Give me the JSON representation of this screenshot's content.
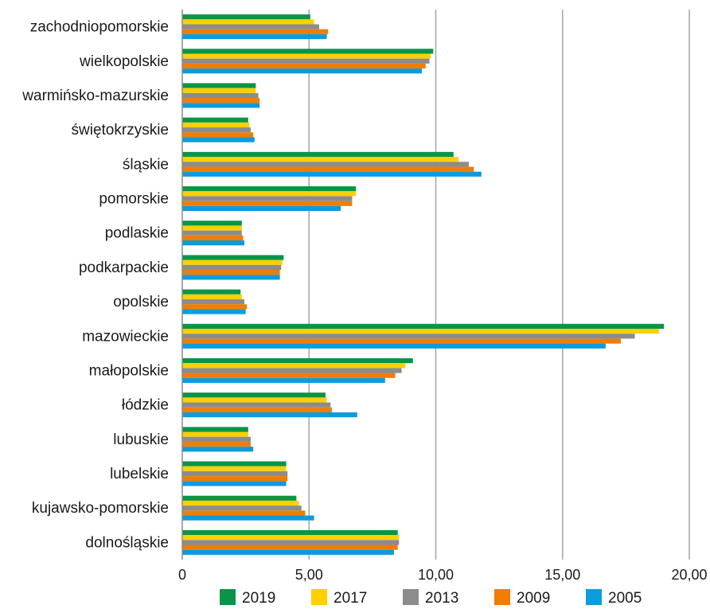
{
  "chart_data": {
    "type": "bar",
    "orientation": "horizontal",
    "title": "",
    "xlabel": "",
    "ylabel": "",
    "xlim": [
      0,
      20
    ],
    "x_ticks": [
      "0",
      "5,00",
      "10,00",
      "15,00",
      "20,00"
    ],
    "grid": "vertical",
    "legend_position": "bottom",
    "categories": [
      "zachodniopomorskie",
      "wielkopolskie",
      "warmińsko-mazurskie",
      "świętokrzyskie",
      "śląskie",
      "pomorskie",
      "podlaskie",
      "podkarpackie",
      "opolskie",
      "mazowieckie",
      "małopolskie",
      "łódzkie",
      "lubuskie",
      "lubelskie",
      "kujawsko-pomorskie",
      "dolnośląskie"
    ],
    "series": [
      {
        "name": "2019",
        "color": "#0a9447",
        "values": [
          5.05,
          9.9,
          2.9,
          2.6,
          10.7,
          6.85,
          2.35,
          4.0,
          2.3,
          19.0,
          9.1,
          5.65,
          2.6,
          4.1,
          4.5,
          8.5
        ]
      },
      {
        "name": "2017",
        "color": "#ffd000",
        "values": [
          5.2,
          9.8,
          2.9,
          2.65,
          10.9,
          6.85,
          2.35,
          3.95,
          2.35,
          18.8,
          8.8,
          5.7,
          2.6,
          4.1,
          4.6,
          8.55
        ]
      },
      {
        "name": "2013",
        "color": "#8c8c8c",
        "values": [
          5.4,
          9.75,
          3.0,
          2.7,
          11.3,
          6.7,
          2.35,
          3.9,
          2.45,
          17.85,
          8.65,
          5.85,
          2.7,
          4.15,
          4.7,
          8.55
        ]
      },
      {
        "name": "2009",
        "color": "#f07d00",
        "values": [
          5.75,
          9.6,
          3.05,
          2.8,
          11.5,
          6.7,
          2.4,
          3.85,
          2.55,
          17.3,
          8.4,
          5.9,
          2.7,
          4.15,
          4.85,
          8.5
        ]
      },
      {
        "name": "2005",
        "color": "#0c9bdc",
        "values": [
          5.7,
          9.45,
          3.05,
          2.85,
          11.8,
          6.25,
          2.45,
          3.85,
          2.5,
          16.7,
          8.0,
          6.9,
          2.8,
          4.1,
          5.2,
          8.35
        ]
      }
    ]
  }
}
